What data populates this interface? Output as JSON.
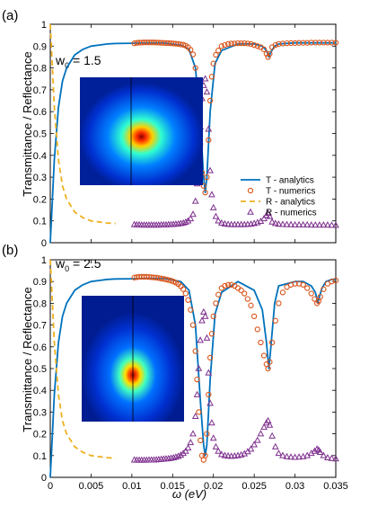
{
  "figure": {
    "ylabel": "Transmittance / Reflectance",
    "xlabel": "ω (eV)"
  },
  "colors": {
    "t_analytics": "#0072BD",
    "t_numerics": "#D95319",
    "r_analytics": "#EDB120",
    "r_numerics": "#7E2F8E"
  },
  "chart_data": [
    {
      "type": "line",
      "panel_label": "(a)",
      "param_label": "w",
      "param_sub": "0",
      "param_value": " = 1.5",
      "xlim": [
        0,
        0.035
      ],
      "ylim": [
        0,
        1
      ],
      "x_ticks": [
        "0",
        "0.005",
        "0.01",
        "0.015",
        "0.02",
        "0.025",
        "0.03",
        "0.035"
      ],
      "x_tick_values": [
        0,
        0.005,
        0.01,
        0.015,
        0.02,
        0.025,
        0.03,
        0.035
      ],
      "y_ticks": [
        "0",
        "0.1",
        "0.2",
        "0.3",
        "0.4",
        "0.5",
        "0.6",
        "0.7",
        "0.8",
        "0.9",
        "1"
      ],
      "y_tick_values": [
        0,
        0.1,
        0.2,
        0.3,
        0.4,
        0.5,
        0.6,
        0.7,
        0.8,
        0.9,
        1.0
      ],
      "show_x_tick_labels": false,
      "legend": {
        "position": "right",
        "entries": [
          "T - analytics",
          "T - numerics",
          "R - analytics",
          "R - numerics"
        ]
      },
      "series": [
        {
          "name": "T - analytics",
          "style": "solid-line",
          "x": [
            0,
            0.0002,
            0.0005,
            0.001,
            0.0015,
            0.002,
            0.003,
            0.004,
            0.005,
            0.006,
            0.007,
            0.008,
            0.01,
            0.012,
            0.014,
            0.016,
            0.017,
            0.0178,
            0.0184,
            0.0188,
            0.019,
            0.0192,
            0.0196,
            0.0202,
            0.021,
            0.023,
            0.025,
            0.026,
            0.0265,
            0.0268,
            0.027,
            0.0275,
            0.028,
            0.03,
            0.032,
            0.035
          ],
          "y": [
            0,
            0.15,
            0.38,
            0.62,
            0.74,
            0.8,
            0.86,
            0.885,
            0.9,
            0.905,
            0.91,
            0.912,
            0.913,
            0.915,
            0.914,
            0.905,
            0.885,
            0.8,
            0.55,
            0.3,
            0.23,
            0.3,
            0.6,
            0.82,
            0.88,
            0.91,
            0.91,
            0.9,
            0.88,
            0.85,
            0.87,
            0.9,
            0.91,
            0.915,
            0.915,
            0.915
          ]
        },
        {
          "name": "T - numerics",
          "style": "circle-marker",
          "x": [
            0.0103,
            0.0106,
            0.0109,
            0.0112,
            0.0115,
            0.0118,
            0.0121,
            0.0124,
            0.0127,
            0.013,
            0.0133,
            0.0136,
            0.0139,
            0.0142,
            0.0145,
            0.0148,
            0.0151,
            0.0154,
            0.0157,
            0.016,
            0.0163,
            0.0166,
            0.0169,
            0.0172,
            0.0175,
            0.0178,
            0.018,
            0.0182,
            0.0184,
            0.0186,
            0.0188,
            0.019,
            0.0192,
            0.0194,
            0.0196,
            0.0198,
            0.02,
            0.0203,
            0.0206,
            0.021,
            0.0214,
            0.0218,
            0.0222,
            0.0226,
            0.023,
            0.0234,
            0.0238,
            0.0242,
            0.0246,
            0.025,
            0.0254,
            0.0258,
            0.0262,
            0.0265,
            0.0267,
            0.0269,
            0.0272,
            0.0276,
            0.028,
            0.0285,
            0.029,
            0.0295,
            0.03,
            0.0305,
            0.031,
            0.0315,
            0.032,
            0.0325,
            0.033,
            0.0335,
            0.034,
            0.0345,
            0.035
          ],
          "y": [
            0.913,
            0.915,
            0.916,
            0.916,
            0.917,
            0.917,
            0.917,
            0.917,
            0.917,
            0.916,
            0.916,
            0.915,
            0.915,
            0.914,
            0.914,
            0.913,
            0.912,
            0.911,
            0.91,
            0.908,
            0.906,
            0.902,
            0.895,
            0.883,
            0.862,
            0.8,
            0.72,
            0.6,
            0.45,
            0.32,
            0.26,
            0.23,
            0.3,
            0.47,
            0.65,
            0.76,
            0.82,
            0.86,
            0.88,
            0.9,
            0.905,
            0.91,
            0.912,
            0.912,
            0.913,
            0.913,
            0.913,
            0.912,
            0.91,
            0.905,
            0.9,
            0.895,
            0.885,
            0.865,
            0.85,
            0.865,
            0.895,
            0.905,
            0.91,
            0.912,
            0.913,
            0.914,
            0.914,
            0.915,
            0.915,
            0.915,
            0.916,
            0.916,
            0.916,
            0.916,
            0.916,
            0.916,
            0.916
          ]
        },
        {
          "name": "R - analytics",
          "style": "dashed-line",
          "x": [
            0,
            0.0002,
            0.0005,
            0.001,
            0.0015,
            0.002,
            0.003,
            0.004,
            0.005,
            0.006,
            0.007,
            0.008
          ],
          "y": [
            1.0,
            0.85,
            0.62,
            0.38,
            0.26,
            0.2,
            0.14,
            0.115,
            0.1,
            0.095,
            0.09,
            0.088
          ]
        },
        {
          "name": "R - numerics",
          "style": "triangle-marker",
          "x": [
            0.0103,
            0.0106,
            0.0109,
            0.0112,
            0.0115,
            0.0118,
            0.0121,
            0.0124,
            0.0127,
            0.013,
            0.0133,
            0.0136,
            0.0139,
            0.0142,
            0.0145,
            0.0148,
            0.0151,
            0.0154,
            0.0157,
            0.016,
            0.0163,
            0.0166,
            0.0169,
            0.0172,
            0.0175,
            0.0178,
            0.018,
            0.0182,
            0.0184,
            0.0186,
            0.0188,
            0.019,
            0.0192,
            0.0194,
            0.0196,
            0.0198,
            0.02,
            0.0203,
            0.0206,
            0.021,
            0.0214,
            0.0218,
            0.0222,
            0.0226,
            0.023,
            0.0234,
            0.0238,
            0.0242,
            0.0246,
            0.025,
            0.0254,
            0.0258,
            0.0262,
            0.0265,
            0.0267,
            0.0269,
            0.0272,
            0.0276,
            0.028,
            0.0285,
            0.029,
            0.0295,
            0.03,
            0.0305,
            0.031,
            0.0315,
            0.032,
            0.0325,
            0.033,
            0.0335,
            0.034,
            0.0345,
            0.035
          ],
          "y": [
            0.083,
            0.082,
            0.082,
            0.081,
            0.081,
            0.081,
            0.081,
            0.081,
            0.081,
            0.081,
            0.081,
            0.082,
            0.082,
            0.082,
            0.083,
            0.083,
            0.084,
            0.085,
            0.086,
            0.088,
            0.09,
            0.094,
            0.1,
            0.11,
            0.13,
            0.19,
            0.27,
            0.38,
            0.53,
            0.66,
            0.72,
            0.75,
            0.69,
            0.52,
            0.33,
            0.22,
            0.16,
            0.12,
            0.1,
            0.09,
            0.086,
            0.084,
            0.083,
            0.083,
            0.083,
            0.083,
            0.083,
            0.084,
            0.085,
            0.088,
            0.092,
            0.098,
            0.11,
            0.125,
            0.135,
            0.12,
            0.095,
            0.088,
            0.085,
            0.084,
            0.083,
            0.083,
            0.082,
            0.082,
            0.082,
            0.082,
            0.081,
            0.081,
            0.081,
            0.081,
            0.081,
            0.08,
            0.08
          ]
        }
      ]
    },
    {
      "type": "line",
      "panel_label": "(b)",
      "param_label": "w",
      "param_sub": "0",
      "param_value": " = 2.5",
      "xlim": [
        0,
        0.035
      ],
      "ylim": [
        0,
        1
      ],
      "x_ticks": [
        "0",
        "0.005",
        "0.01",
        "0.015",
        "0.02",
        "0.025",
        "0.03",
        "0.035"
      ],
      "x_tick_values": [
        0,
        0.005,
        0.01,
        0.015,
        0.02,
        0.025,
        0.03,
        0.035
      ],
      "y_ticks": [
        "0",
        "0.1",
        "0.2",
        "0.3",
        "0.4",
        "0.5",
        "0.6",
        "0.7",
        "0.8",
        "0.9",
        "1"
      ],
      "y_tick_values": [
        0,
        0.1,
        0.2,
        0.3,
        0.4,
        0.5,
        0.6,
        0.7,
        0.8,
        0.9,
        1.0
      ],
      "show_x_tick_labels": true,
      "series": [
        {
          "name": "T - analytics",
          "style": "solid-line",
          "x": [
            0,
            0.0002,
            0.0005,
            0.001,
            0.0015,
            0.002,
            0.003,
            0.004,
            0.005,
            0.006,
            0.007,
            0.008,
            0.01,
            0.012,
            0.014,
            0.016,
            0.017,
            0.0178,
            0.0184,
            0.0188,
            0.019,
            0.0192,
            0.0196,
            0.0202,
            0.021,
            0.023,
            0.025,
            0.026,
            0.0265,
            0.0268,
            0.027,
            0.0275,
            0.028,
            0.03,
            0.031,
            0.032,
            0.0325,
            0.0328,
            0.033,
            0.0333,
            0.0338,
            0.0345,
            0.035
          ],
          "y": [
            0,
            0.15,
            0.38,
            0.62,
            0.74,
            0.8,
            0.86,
            0.885,
            0.9,
            0.905,
            0.91,
            0.912,
            0.913,
            0.915,
            0.914,
            0.9,
            0.86,
            0.7,
            0.35,
            0.15,
            0.1,
            0.15,
            0.45,
            0.75,
            0.85,
            0.9,
            0.86,
            0.77,
            0.62,
            0.5,
            0.58,
            0.8,
            0.88,
            0.9,
            0.9,
            0.88,
            0.85,
            0.8,
            0.83,
            0.87,
            0.9,
            0.91,
            0.91
          ]
        },
        {
          "name": "T - numerics",
          "style": "circle-marker",
          "x": [
            0.0103,
            0.0106,
            0.0109,
            0.0112,
            0.0115,
            0.0118,
            0.0121,
            0.0124,
            0.0127,
            0.013,
            0.0133,
            0.0136,
            0.0139,
            0.0142,
            0.0145,
            0.0148,
            0.0151,
            0.0154,
            0.0157,
            0.016,
            0.0163,
            0.0166,
            0.0169,
            0.0172,
            0.0175,
            0.0178,
            0.018,
            0.0182,
            0.0184,
            0.0186,
            0.0188,
            0.019,
            0.0192,
            0.0194,
            0.0196,
            0.0198,
            0.02,
            0.0203,
            0.0206,
            0.021,
            0.0214,
            0.0218,
            0.0222,
            0.0226,
            0.023,
            0.0234,
            0.0238,
            0.0242,
            0.0246,
            0.025,
            0.0254,
            0.0258,
            0.0262,
            0.0265,
            0.0267,
            0.0269,
            0.0272,
            0.0276,
            0.028,
            0.0285,
            0.029,
            0.0295,
            0.03,
            0.0305,
            0.031,
            0.0315,
            0.032,
            0.0324,
            0.0327,
            0.0329,
            0.0331,
            0.0335,
            0.034,
            0.0345,
            0.035
          ],
          "y": [
            0.918,
            0.92,
            0.922,
            0.922,
            0.922,
            0.922,
            0.921,
            0.92,
            0.919,
            0.918,
            0.916,
            0.914,
            0.912,
            0.91,
            0.907,
            0.904,
            0.9,
            0.895,
            0.888,
            0.878,
            0.865,
            0.845,
            0.815,
            0.77,
            0.7,
            0.58,
            0.45,
            0.3,
            0.17,
            0.1,
            0.08,
            0.1,
            0.2,
            0.38,
            0.55,
            0.66,
            0.74,
            0.8,
            0.84,
            0.87,
            0.88,
            0.885,
            0.885,
            0.88,
            0.87,
            0.86,
            0.845,
            0.82,
            0.79,
            0.74,
            0.68,
            0.62,
            0.56,
            0.52,
            0.5,
            0.53,
            0.62,
            0.72,
            0.8,
            0.85,
            0.875,
            0.885,
            0.89,
            0.89,
            0.885,
            0.87,
            0.845,
            0.82,
            0.8,
            0.81,
            0.83,
            0.865,
            0.89,
            0.9,
            0.905
          ]
        },
        {
          "name": "R - analytics",
          "style": "dashed-line",
          "x": [
            0,
            0.0002,
            0.0005,
            0.001,
            0.0015,
            0.002,
            0.003,
            0.004,
            0.005,
            0.006,
            0.007,
            0.008
          ],
          "y": [
            1.0,
            0.85,
            0.62,
            0.38,
            0.26,
            0.2,
            0.14,
            0.115,
            0.1,
            0.095,
            0.09,
            0.088
          ]
        },
        {
          "name": "R - numerics",
          "style": "triangle-marker",
          "x": [
            0.0103,
            0.0106,
            0.0109,
            0.0112,
            0.0115,
            0.0118,
            0.0121,
            0.0124,
            0.0127,
            0.013,
            0.0133,
            0.0136,
            0.0139,
            0.0142,
            0.0145,
            0.0148,
            0.0151,
            0.0154,
            0.0157,
            0.016,
            0.0163,
            0.0166,
            0.0169,
            0.0172,
            0.0175,
            0.0178,
            0.018,
            0.0182,
            0.0184,
            0.0186,
            0.0188,
            0.019,
            0.0192,
            0.0194,
            0.0196,
            0.0198,
            0.02,
            0.0203,
            0.0206,
            0.021,
            0.0214,
            0.0218,
            0.0222,
            0.0226,
            0.023,
            0.0234,
            0.0238,
            0.0242,
            0.0246,
            0.025,
            0.0254,
            0.0258,
            0.0262,
            0.0265,
            0.0267,
            0.0269,
            0.0272,
            0.0276,
            0.028,
            0.0285,
            0.029,
            0.0295,
            0.03,
            0.0305,
            0.031,
            0.0315,
            0.032,
            0.0324,
            0.0327,
            0.0329,
            0.0331,
            0.0335,
            0.034,
            0.0345,
            0.035
          ],
          "y": [
            0.08,
            0.079,
            0.079,
            0.079,
            0.079,
            0.079,
            0.08,
            0.08,
            0.08,
            0.081,
            0.082,
            0.083,
            0.084,
            0.085,
            0.086,
            0.088,
            0.09,
            0.093,
            0.097,
            0.102,
            0.11,
            0.12,
            0.135,
            0.16,
            0.2,
            0.28,
            0.38,
            0.5,
            0.63,
            0.72,
            0.76,
            0.74,
            0.64,
            0.48,
            0.34,
            0.25,
            0.18,
            0.14,
            0.12,
            0.105,
            0.1,
            0.098,
            0.097,
            0.098,
            0.1,
            0.103,
            0.108,
            0.118,
            0.13,
            0.15,
            0.17,
            0.2,
            0.23,
            0.25,
            0.26,
            0.24,
            0.19,
            0.14,
            0.11,
            0.1,
            0.095,
            0.093,
            0.092,
            0.093,
            0.095,
            0.1,
            0.11,
            0.12,
            0.13,
            0.125,
            0.115,
            0.1,
            0.09,
            0.087,
            0.085
          ]
        }
      ]
    }
  ]
}
